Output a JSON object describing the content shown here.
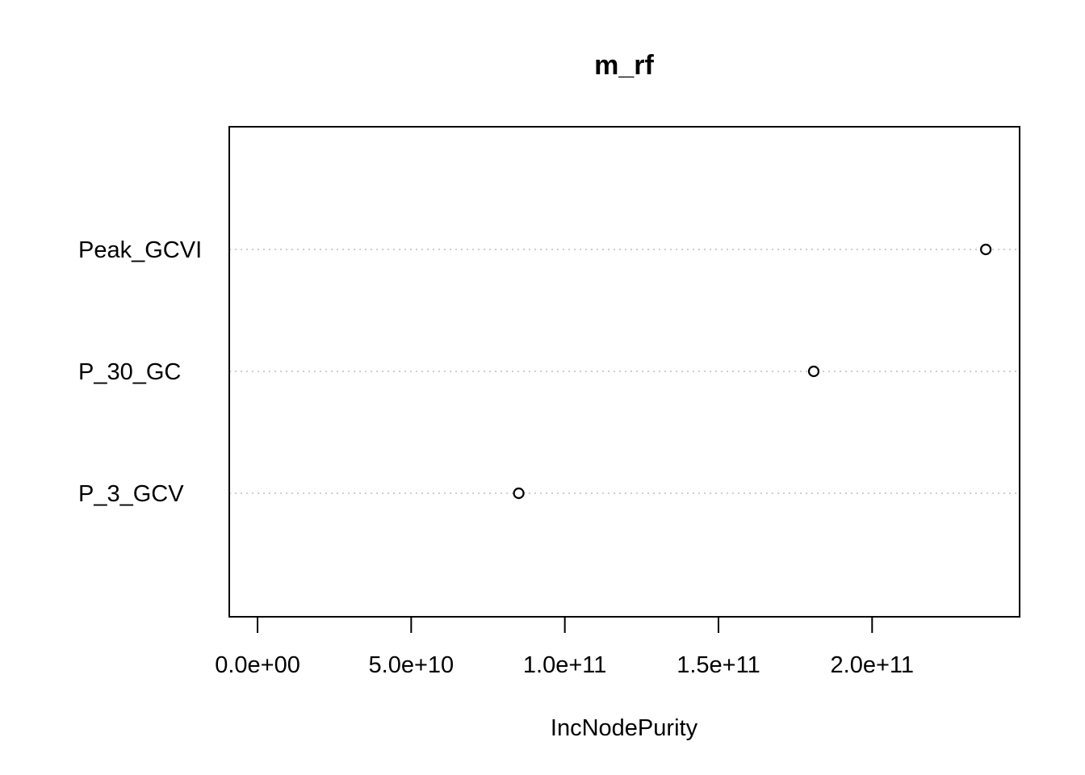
{
  "chart_data": {
    "type": "scatter",
    "title": "m_rf",
    "xlabel": "IncNodePurity",
    "ylabel": "",
    "categories": [
      "Peak_GCVI",
      "P_30_GC",
      "P_3_GCV"
    ],
    "values": [
      237000000000.0,
      181000000000.0,
      85000000000.0
    ],
    "xlim": [
      -9200000000.0,
      248000000000.0
    ],
    "x_ticks": [
      0,
      50000000000.0,
      100000000000.0,
      150000000000.0,
      200000000000.0
    ],
    "x_tick_labels": [
      "0.0e+00",
      "5.0e+10",
      "1.0e+11",
      "1.5e+11",
      "2.0e+11"
    ],
    "grid": "dotted horizontal lines at each category",
    "marker": "open circle"
  }
}
